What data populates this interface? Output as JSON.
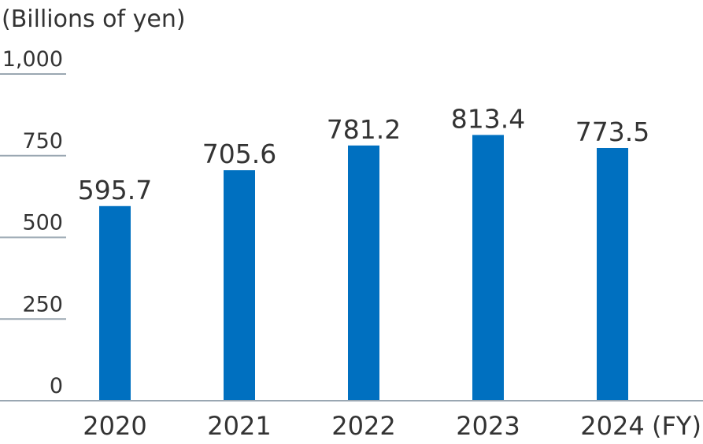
{
  "chart_data": {
    "type": "bar",
    "unit_label": "(Billions of yen)",
    "x_suffix": "(FY)",
    "categories": [
      "2020",
      "2021",
      "2022",
      "2023",
      "2024"
    ],
    "values": [
      595.7,
      705.6,
      781.2,
      813.4,
      773.5
    ],
    "value_labels": [
      "595.7",
      "705.6",
      "781.2",
      "813.4",
      "773.5"
    ],
    "y_ticks": [
      0,
      250,
      500,
      750,
      1000
    ],
    "y_tick_labels": [
      "0",
      "250",
      "500",
      "750",
      "1,000"
    ],
    "ylim": [
      0,
      1000
    ],
    "grid": false,
    "colors": {
      "bar": "#0070C0",
      "axis": "#9aa7b2",
      "text": "#333333"
    }
  }
}
